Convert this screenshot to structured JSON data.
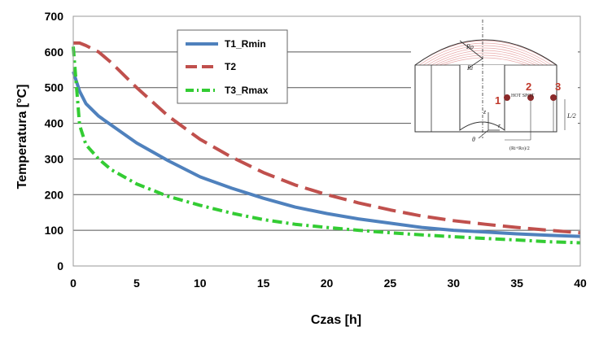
{
  "chart_data": {
    "type": "line",
    "xlabel": "Czas [h]",
    "ylabel": "Temperatura [°C]",
    "xlim": [
      0,
      40
    ],
    "ylim": [
      0,
      700
    ],
    "xticks": [
      0,
      5,
      10,
      15,
      20,
      25,
      30,
      35,
      40
    ],
    "yticks": [
      0,
      100,
      200,
      300,
      400,
      500,
      600,
      700
    ],
    "grid": "horizontal",
    "legend_position": "top-center",
    "series": [
      {
        "name": "T1_Rmin",
        "color": "#4f81bd",
        "style": "solid",
        "x": [
          0,
          0.5,
          1,
          2,
          3,
          5,
          7.5,
          10,
          12.5,
          15,
          17.5,
          20,
          22.5,
          25,
          27.5,
          30,
          32.5,
          35,
          37.5,
          40
        ],
        "y": [
          545,
          490,
          455,
          420,
          395,
          345,
          295,
          250,
          218,
          190,
          165,
          147,
          132,
          120,
          108,
          100,
          95,
          90,
          86,
          83
        ]
      },
      {
        "name": "T2",
        "color": "#c0504d",
        "style": "dashed",
        "x": [
          0,
          0.5,
          1,
          2,
          3,
          5,
          7.5,
          10,
          12.5,
          15,
          17.5,
          20,
          22.5,
          25,
          27.5,
          30,
          32.5,
          35,
          37.5,
          40
        ],
        "y": [
          625,
          625,
          618,
          600,
          570,
          500,
          420,
          355,
          305,
          262,
          227,
          200,
          177,
          157,
          140,
          127,
          117,
          108,
          100,
          93
        ]
      },
      {
        "name": "T3_Rmax",
        "color": "#33cc33",
        "style": "dash-dot",
        "x": [
          0,
          0.5,
          1,
          2,
          3,
          5,
          7.5,
          10,
          12.5,
          15,
          17.5,
          20,
          22.5,
          25,
          27.5,
          30,
          32.5,
          35,
          37.5,
          40
        ],
        "y": [
          615,
          395,
          340,
          300,
          270,
          230,
          195,
          170,
          148,
          130,
          117,
          108,
          100,
          93,
          87,
          82,
          77,
          73,
          68,
          65
        ]
      }
    ]
  },
  "inset": {
    "labels": {
      "ro": "Ro",
      "ri": "Ri",
      "z": "z",
      "r": "r",
      "theta": "θ",
      "hot_spot": "HOT SPOT",
      "l2": "L/2",
      "dim": "(Ri+Ro)/2"
    },
    "points": [
      "1",
      "2",
      "3"
    ]
  }
}
